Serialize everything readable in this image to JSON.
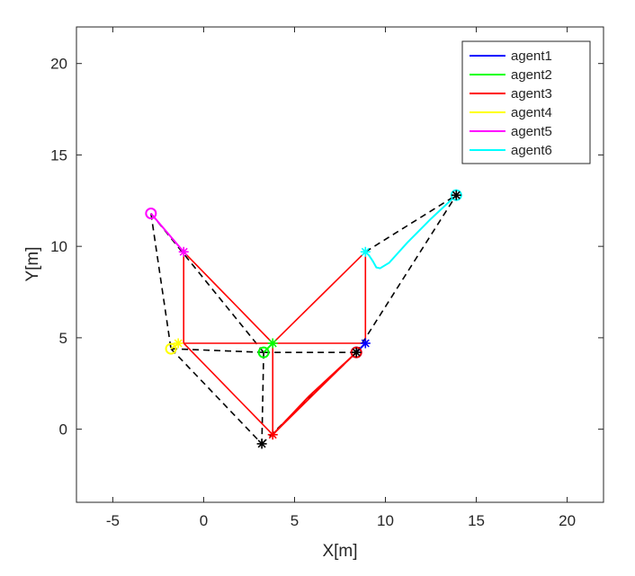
{
  "chart_data": {
    "type": "line",
    "xlabel": "X[m]",
    "ylabel": "Y[m]",
    "xlim": [
      -7,
      22
    ],
    "ylim": [
      -4,
      22
    ],
    "xticks": [
      -5,
      0,
      5,
      10,
      15,
      20
    ],
    "yticks": [
      0,
      5,
      10,
      15,
      20
    ],
    "grid": false,
    "legend_position": "top-right",
    "series": [
      {
        "name": "agent1",
        "color": "#0000ff",
        "path": [
          [
            8.4,
            4.2
          ],
          [
            8.9,
            4.7
          ]
        ],
        "start": [
          8.4,
          4.2
        ],
        "end": [
          8.9,
          4.7
        ]
      },
      {
        "name": "agent2",
        "color": "#00ff00",
        "path": [
          [
            3.3,
            4.2
          ],
          [
            3.5,
            4.4
          ],
          [
            3.8,
            4.7
          ]
        ],
        "start": [
          3.3,
          4.2
        ],
        "end": [
          3.8,
          4.7
        ]
      },
      {
        "name": "agent3",
        "color": "#ff0000",
        "path": [
          [
            8.4,
            4.2
          ],
          [
            5.8,
            1.8
          ],
          [
            3.8,
            -0.3
          ]
        ],
        "start": [
          8.4,
          4.2
        ],
        "end": [
          3.8,
          -0.3
        ]
      },
      {
        "name": "agent4",
        "color": "#ffff00",
        "path": [
          [
            -1.8,
            4.4
          ],
          [
            -1.5,
            4.6
          ],
          [
            -1.4,
            4.7
          ]
        ],
        "start": [
          -1.8,
          4.4
        ],
        "end": [
          -1.4,
          4.7
        ]
      },
      {
        "name": "agent5",
        "color": "#ff00ff",
        "path": [
          [
            -2.9,
            11.8
          ],
          [
            -1.1,
            9.7
          ]
        ],
        "start": [
          -2.9,
          11.8
        ],
        "end": [
          -1.1,
          9.7
        ]
      },
      {
        "name": "agent6",
        "color": "#00ffff",
        "path": [
          [
            13.9,
            12.8
          ],
          [
            12.5,
            11.5
          ],
          [
            11.2,
            10.2
          ],
          [
            10.2,
            9.1
          ],
          [
            9.7,
            8.8
          ],
          [
            9.5,
            8.85
          ],
          [
            9.3,
            9.2
          ],
          [
            9.1,
            9.5
          ],
          [
            8.9,
            9.7
          ]
        ],
        "start": [
          13.9,
          12.8
        ],
        "end": [
          8.9,
          9.7
        ]
      }
    ],
    "formation_edges_initial": [
      [
        [
          -2.9,
          11.8
        ],
        [
          -1.8,
          4.4
        ]
      ],
      [
        [
          -2.9,
          11.8
        ],
        [
          3.3,
          4.2
        ]
      ],
      [
        [
          -1.8,
          4.4
        ],
        [
          3.3,
          4.2
        ]
      ],
      [
        [
          -1.8,
          4.4
        ],
        [
          3.2,
          -0.8
        ]
      ],
      [
        [
          3.3,
          4.2
        ],
        [
          3.2,
          -0.8
        ]
      ],
      [
        [
          3.3,
          4.2
        ],
        [
          8.4,
          4.2
        ]
      ],
      [
        [
          8.4,
          4.2
        ],
        [
          13.9,
          12.8
        ]
      ],
      [
        [
          3.2,
          -0.8
        ],
        [
          8.4,
          4.2
        ]
      ],
      [
        [
          8.9,
          9.7
        ],
        [
          13.9,
          12.8
        ]
      ]
    ],
    "formation_edges_final": [
      [
        [
          -1.1,
          9.7
        ],
        [
          -1.1,
          4.7
        ]
      ],
      [
        [
          -1.1,
          9.7
        ],
        [
          3.8,
          4.7
        ]
      ],
      [
        [
          -1.1,
          4.7
        ],
        [
          8.9,
          4.7
        ]
      ],
      [
        [
          -1.1,
          4.7
        ],
        [
          3.8,
          -0.3
        ]
      ],
      [
        [
          3.8,
          4.7
        ],
        [
          3.8,
          -0.3
        ]
      ],
      [
        [
          3.8,
          4.7
        ],
        [
          8.9,
          9.7
        ]
      ],
      [
        [
          8.9,
          9.7
        ],
        [
          8.9,
          4.7
        ]
      ],
      [
        [
          8.9,
          4.7
        ],
        [
          3.8,
          -0.3
        ]
      ]
    ],
    "final_formation_color": "#ff0000",
    "initial_formation_color": "#000000",
    "marker_start": "circle",
    "marker_end": "asterisk"
  }
}
